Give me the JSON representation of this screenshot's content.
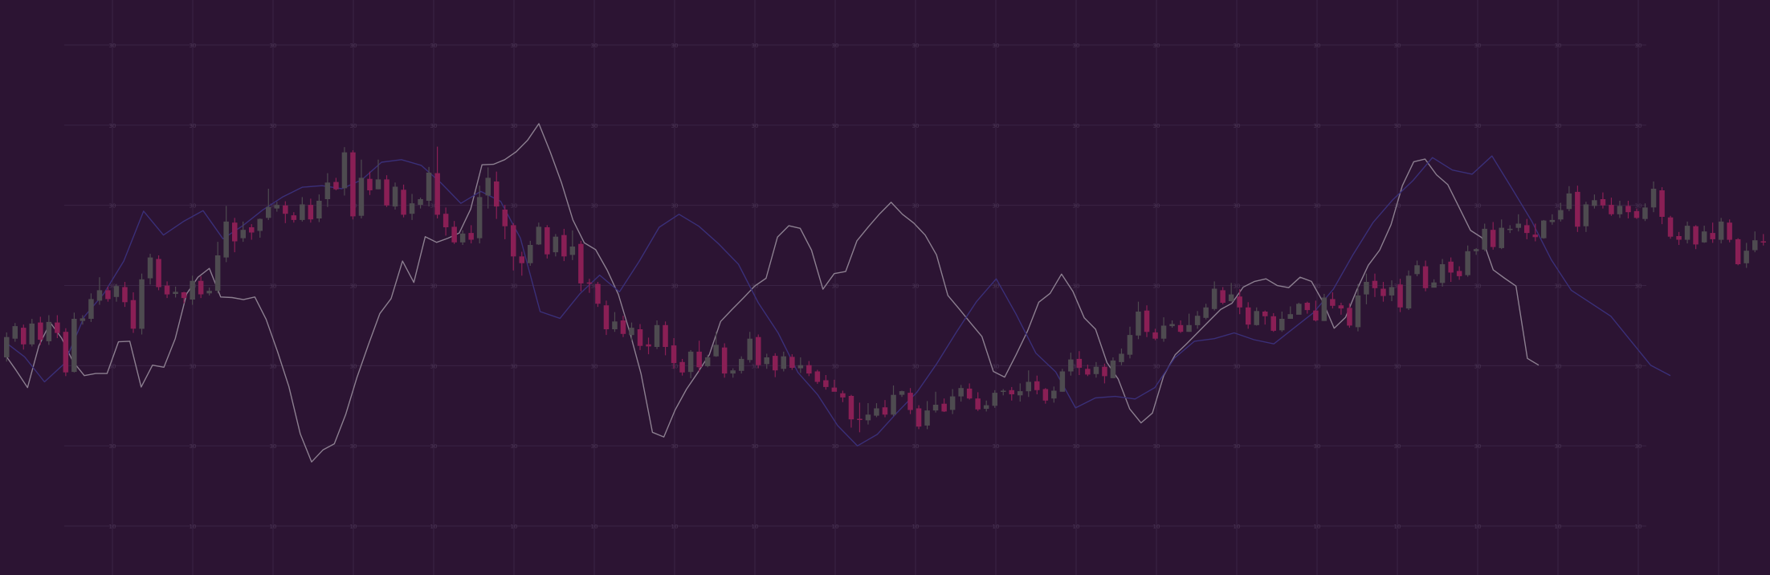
{
  "theme": {
    "background": "#2c1433",
    "grid_color": "#3a2344",
    "grid_label_color": "#4a3554",
    "up_color": "#4e4b50",
    "down_color": "#8a1f55",
    "overlay_gray": "#8c7f90",
    "overlay_blue": "#3a2f78"
  },
  "grid_labels": {
    "row_values": [
      "30",
      "30",
      "30",
      "30",
      "30",
      "30",
      "10"
    ],
    "columns": 20
  },
  "chart_data": {
    "type": "candlestick",
    "title": "",
    "xlabel": "",
    "ylabel": "",
    "grid": true,
    "legend": "none",
    "ylim": [
      0,
      100
    ],
    "candles": [
      [
        37.5,
        41.4,
        42.3,
        36.7
      ],
      [
        41.1,
        43.5,
        44.1,
        40.5
      ],
      [
        43.2,
        40.0,
        43.8,
        39.0
      ],
      [
        40.0,
        44.0,
        44.9,
        39.6
      ],
      [
        44.2,
        40.9,
        45.3,
        39.9
      ],
      [
        40.6,
        44.3,
        45.6,
        39.9
      ],
      [
        44.2,
        42.2,
        45.6,
        41.2
      ],
      [
        42.4,
        34.6,
        43.1,
        33.9
      ],
      [
        34.7,
        44.9,
        46.1,
        34.6
      ],
      [
        44.5,
        45.0,
        45.6,
        43.8
      ],
      [
        44.9,
        48.7,
        49.8,
        44.3
      ],
      [
        48.4,
        50.4,
        52.9,
        47.6
      ],
      [
        50.4,
        48.7,
        51.1,
        48.2
      ],
      [
        49.1,
        51.2,
        51.6,
        48.2
      ],
      [
        51.0,
        48.1,
        52.0,
        47.2
      ],
      [
        48.5,
        43.0,
        50.0,
        42.2
      ],
      [
        43.0,
        52.5,
        53.6,
        41.9
      ],
      [
        52.7,
        56.7,
        57.4,
        51.5
      ],
      [
        56.4,
        51.0,
        57.1,
        50.4
      ],
      [
        51.3,
        49.6,
        52.1,
        48.9
      ],
      [
        49.7,
        50.1,
        51.1,
        49.0
      ],
      [
        50.0,
        48.9,
        50.1,
        47.9
      ],
      [
        48.6,
        52.2,
        53.2,
        47.6
      ],
      [
        52.2,
        49.6,
        53.1,
        48.9
      ],
      [
        49.8,
        50.3,
        50.9,
        49.4
      ],
      [
        50.3,
        57.1,
        59.7,
        49.8
      ],
      [
        56.7,
        63.6,
        66.6,
        55.8
      ],
      [
        63.4,
        59.8,
        64.3,
        57.7
      ],
      [
        60.4,
        62.0,
        63.6,
        59.7
      ],
      [
        62.5,
        61.5,
        63.1,
        60.1
      ],
      [
        61.8,
        64.1,
        64.2,
        60.5
      ],
      [
        64.3,
        66.4,
        69.9,
        63.9
      ],
      [
        66.1,
        66.8,
        67.4,
        65.5
      ],
      [
        66.7,
        65.1,
        67.5,
        63.3
      ],
      [
        64.8,
        63.9,
        65.4,
        63.4
      ],
      [
        63.9,
        66.9,
        68.3,
        63.6
      ],
      [
        66.8,
        64.0,
        68.0,
        63.4
      ],
      [
        64.2,
        67.6,
        68.8,
        63.5
      ],
      [
        67.9,
        71.1,
        72.9,
        66.4
      ],
      [
        71.2,
        69.8,
        72.0,
        69.6
      ],
      [
        70.0,
        76.9,
        77.9,
        68.6
      ],
      [
        76.9,
        64.6,
        77.3,
        64.0
      ],
      [
        64.7,
        72.0,
        75.5,
        64.2
      ],
      [
        71.8,
        69.6,
        73.2,
        68.7
      ],
      [
        69.8,
        71.7,
        75.5,
        69.8
      ],
      [
        71.7,
        66.7,
        72.5,
        66.4
      ],
      [
        66.5,
        70.3,
        71.1,
        65.9
      ],
      [
        69.7,
        64.9,
        70.7,
        64.4
      ],
      [
        65.1,
        67.1,
        68.9,
        63.9
      ],
      [
        66.8,
        67.9,
        68.2,
        66.1
      ],
      [
        67.6,
        73.0,
        74.1,
        66.5
      ],
      [
        72.9,
        64.9,
        78.0,
        64.2
      ],
      [
        65.1,
        62.5,
        66.3,
        60.9
      ],
      [
        62.6,
        59.6,
        63.7,
        59.3
      ],
      [
        59.6,
        61.3,
        61.9,
        59.1
      ],
      [
        61.4,
        60.1,
        62.9,
        59.4
      ],
      [
        60.4,
        68.3,
        70.5,
        59.4
      ],
      [
        68.6,
        72.0,
        74.0,
        66.1
      ],
      [
        71.3,
        66.5,
        73.2,
        64.1
      ],
      [
        65.9,
        62.7,
        66.8,
        60.2
      ],
      [
        62.9,
        56.9,
        63.3,
        54.2
      ],
      [
        56.9,
        55.6,
        57.8,
        53.2
      ],
      [
        55.6,
        59.1,
        59.9,
        55.1
      ],
      [
        59.2,
        62.6,
        63.4,
        59.1
      ],
      [
        62.5,
        57.3,
        62.9,
        56.5
      ],
      [
        57.7,
        60.7,
        61.2,
        56.9
      ],
      [
        61.0,
        56.9,
        62.2,
        56.0
      ],
      [
        57.2,
        58.8,
        61.9,
        56.2
      ],
      [
        59.3,
        51.7,
        59.9,
        50.2
      ],
      [
        51.9,
        51.8,
        52.6,
        49.9
      ],
      [
        51.6,
        47.8,
        52.0,
        47.2
      ],
      [
        47.5,
        42.9,
        48.4,
        41.8
      ],
      [
        42.9,
        44.4,
        46.2,
        42.4
      ],
      [
        44.6,
        42.0,
        45.5,
        41.4
      ],
      [
        41.8,
        43.2,
        44.2,
        40.7
      ],
      [
        42.9,
        39.7,
        43.9,
        38.9
      ],
      [
        40.0,
        39.6,
        41.3,
        38.1
      ],
      [
        39.5,
        43.7,
        44.6,
        39.1
      ],
      [
        43.7,
        39.5,
        44.4,
        37.9
      ],
      [
        39.8,
        36.4,
        41.2,
        35.3
      ],
      [
        36.6,
        34.6,
        37.2,
        34.0
      ],
      [
        34.7,
        38.6,
        38.9,
        33.5
      ],
      [
        38.6,
        35.6,
        40.7,
        34.7
      ],
      [
        35.8,
        37.5,
        38.0,
        35.6
      ],
      [
        37.7,
        39.9,
        42.4,
        37.6
      ],
      [
        39.4,
        34.4,
        40.2,
        33.6
      ],
      [
        34.4,
        35.0,
        35.4,
        33.6
      ],
      [
        34.9,
        37.2,
        37.7,
        34.4
      ],
      [
        37.0,
        41.1,
        42.4,
        36.5
      ],
      [
        41.4,
        36.0,
        41.9,
        35.4
      ],
      [
        36.2,
        37.5,
        38.2,
        35.3
      ],
      [
        37.8,
        35.0,
        38.3,
        33.7
      ],
      [
        35.3,
        37.7,
        38.6,
        34.8
      ],
      [
        37.6,
        35.5,
        38.1,
        35.1
      ],
      [
        35.4,
        36.0,
        37.5,
        34.5
      ],
      [
        36.0,
        34.4,
        36.8,
        33.9
      ],
      [
        34.8,
        32.8,
        35.1,
        32.4
      ],
      [
        33.1,
        31.8,
        34.1,
        31.3
      ],
      [
        31.7,
        30.9,
        33.2,
        31.1
      ],
      [
        30.6,
        29.8,
        31.1,
        28.9
      ],
      [
        30.1,
        25.6,
        30.3,
        24.0
      ],
      [
        25.7,
        25.5,
        28.8,
        23.1
      ],
      [
        25.4,
        26.5,
        28.7,
        24.6
      ],
      [
        26.3,
        27.7,
        28.7,
        26.0
      ],
      [
        27.9,
        26.5,
        29.3,
        26.0
      ],
      [
        26.5,
        30.3,
        32.1,
        26.2
      ],
      [
        30.3,
        31.0,
        31.1,
        29.9
      ],
      [
        30.7,
        27.4,
        31.6,
        26.6
      ],
      [
        27.7,
        24.2,
        28.3,
        23.7
      ],
      [
        24.4,
        27.3,
        29.1,
        23.7
      ],
      [
        27.3,
        28.4,
        30.9,
        26.9
      ],
      [
        28.6,
        27.1,
        29.6,
        27.0
      ],
      [
        27.4,
        30.0,
        31.4,
        26.6
      ],
      [
        30.0,
        31.6,
        32.2,
        29.0
      ],
      [
        31.5,
        29.6,
        32.5,
        29.4
      ],
      [
        29.6,
        27.5,
        30.8,
        27.2
      ],
      [
        27.6,
        28.3,
        29.2,
        27.1
      ],
      [
        28.2,
        30.7,
        31.2,
        27.8
      ],
      [
        31.0,
        31.1,
        31.4,
        30.2
      ],
      [
        31.2,
        30.4,
        31.8,
        29.2
      ],
      [
        30.2,
        31.0,
        32.5,
        29.0
      ],
      [
        31.0,
        32.8,
        35.0,
        29.9
      ],
      [
        32.9,
        31.2,
        34.0,
        30.4
      ],
      [
        31.4,
        29.2,
        31.6,
        28.6
      ],
      [
        29.6,
        31.1,
        31.9,
        28.8
      ],
      [
        30.9,
        34.8,
        35.3,
        30.9
      ],
      [
        34.8,
        37.1,
        38.4,
        34.0
      ],
      [
        37.2,
        35.5,
        38.7,
        34.1
      ],
      [
        35.3,
        34.2,
        36.1,
        33.9
      ],
      [
        34.3,
        35.7,
        36.6,
        33.6
      ],
      [
        35.7,
        33.9,
        36.3,
        32.5
      ],
      [
        33.5,
        36.9,
        37.5,
        33.5
      ],
      [
        36.6,
        38.2,
        39.2,
        36.0
      ],
      [
        38.0,
        41.8,
        43.4,
        37.3
      ],
      [
        41.7,
        46.3,
        48.2,
        41.0
      ],
      [
        46.5,
        42.4,
        47.5,
        41.4
      ],
      [
        42.3,
        41.1,
        43.0,
        40.8
      ],
      [
        41.1,
        43.6,
        45.2,
        40.5
      ],
      [
        43.5,
        43.9,
        44.6,
        43.2
      ],
      [
        43.7,
        42.4,
        44.6,
        42.2
      ],
      [
        42.4,
        43.7,
        45.9,
        42.4
      ],
      [
        43.7,
        45.5,
        46.4,
        43.0
      ],
      [
        45.1,
        47.1,
        47.8,
        44.8
      ],
      [
        46.8,
        50.7,
        52.1,
        46.5
      ],
      [
        50.4,
        48.0,
        51.0,
        47.7
      ],
      [
        48.3,
        49.6,
        51.8,
        48.2
      ],
      [
        49.2,
        47.1,
        50.6,
        45.8
      ],
      [
        47.1,
        43.8,
        48.1,
        43.0
      ],
      [
        43.7,
        46.4,
        47.1,
        43.6
      ],
      [
        46.3,
        45.4,
        46.5,
        43.8
      ],
      [
        45.4,
        42.6,
        46.0,
        42.4
      ],
      [
        42.7,
        44.9,
        46.3,
        42.4
      ],
      [
        44.9,
        45.8,
        47.3,
        45.6
      ],
      [
        45.7,
        47.8,
        48.0,
        45.8
      ],
      [
        48.0,
        46.6,
        48.2,
        45.9
      ],
      [
        46.5,
        44.6,
        48.4,
        44.4
      ],
      [
        44.5,
        49.0,
        49.7,
        44.5
      ],
      [
        48.7,
        47.4,
        50.0,
        46.9
      ],
      [
        47.5,
        46.9,
        48.0,
        45.7
      ],
      [
        47.0,
        43.6,
        47.9,
        43.2
      ],
      [
        43.3,
        49.4,
        51.6,
        42.5
      ],
      [
        49.6,
        52.0,
        53.6,
        47.7
      ],
      [
        52.2,
        50.8,
        53.6,
        49.1
      ],
      [
        50.7,
        49.3,
        52.0,
        48.2
      ],
      [
        49.4,
        51.0,
        52.3,
        48.3
      ],
      [
        51.5,
        47.1,
        52.6,
        46.2
      ],
      [
        46.9,
        53.2,
        54.2,
        46.6
      ],
      [
        53.5,
        55.2,
        56.1,
        53.1
      ],
      [
        55.0,
        50.8,
        56.1,
        50.2
      ],
      [
        50.9,
        51.9,
        52.5,
        51.2
      ],
      [
        51.8,
        55.4,
        56.4,
        51.1
      ],
      [
        55.9,
        53.8,
        56.7,
        52.0
      ],
      [
        54.1,
        53.1,
        55.0,
        52.4
      ],
      [
        53.3,
        57.9,
        59.0,
        53.0
      ],
      [
        57.9,
        58.3,
        58.5,
        57.2
      ],
      [
        58.2,
        62.2,
        63.2,
        57.9
      ],
      [
        62.0,
        58.7,
        63.5,
        58.2
      ],
      [
        58.5,
        62.4,
        64.0,
        58.3
      ],
      [
        62.2,
        62.2,
        62.9,
        61.4
      ],
      [
        62.4,
        63.2,
        65.0,
        61.7
      ],
      [
        62.9,
        61.4,
        64.1,
        60.2
      ],
      [
        61.1,
        60.6,
        63.2,
        59.8
      ],
      [
        60.4,
        63.8,
        63.9,
        60.3
      ],
      [
        63.5,
        63.9,
        65.0,
        63.0
      ],
      [
        64.0,
        65.8,
        67.2,
        63.6
      ],
      [
        66.0,
        69.0,
        70.4,
        65.6
      ],
      [
        69.3,
        62.6,
        70.5,
        61.6
      ],
      [
        62.7,
        66.9,
        67.4,
        61.6
      ],
      [
        66.6,
        67.7,
        68.8,
        66.1
      ],
      [
        67.9,
        66.7,
        69.2,
        66.1
      ],
      [
        66.8,
        65.0,
        68.2,
        64.7
      ],
      [
        65.0,
        66.6,
        67.6,
        64.3
      ],
      [
        66.6,
        65.4,
        67.6,
        64.2
      ],
      [
        65.6,
        64.3,
        66.1,
        64.1
      ],
      [
        64.1,
        66.3,
        67.1,
        63.7
      ],
      [
        66.3,
        69.9,
        71.3,
        65.4
      ],
      [
        69.6,
        64.5,
        70.2,
        63.1
      ],
      [
        64.4,
        60.7,
        64.7,
        60.3
      ],
      [
        60.8,
        60.1,
        61.6,
        59.1
      ],
      [
        60.1,
        62.8,
        63.6,
        59.4
      ],
      [
        62.7,
        59.2,
        62.9,
        58.3
      ],
      [
        59.6,
        61.7,
        62.8,
        59.5
      ],
      [
        61.4,
        60.2,
        63.4,
        59.5
      ],
      [
        60.1,
        63.6,
        64.3,
        59.4
      ],
      [
        63.4,
        60.1,
        64.0,
        59.6
      ],
      [
        60.2,
        55.4,
        60.4,
        55.2
      ],
      [
        55.6,
        58.0,
        59.5,
        54.7
      ],
      [
        58.1,
        60.0,
        61.7,
        57.7
      ],
      [
        59.8,
        59.6,
        61.2,
        59.0
      ]
    ],
    "series": [
      {
        "y": [
          38.1,
          35.0,
          31.7,
          39.7,
          44.2,
          41.2,
          36.7,
          34.0,
          34.4,
          34.4,
          40.5,
          40.6,
          31.8,
          36.0,
          35.6,
          41.1,
          49.7,
          52.9,
          54.6,
          49.1,
          49.0,
          48.6,
          49.1,
          44.8,
          38.6,
          31.9,
          22.8,
          17.4,
          19.7,
          20.9,
          26.5,
          33.7,
          39.9,
          45.9,
          48.8,
          56.0,
          51.9,
          60.7,
          59.6,
          60.4,
          61.4,
          66.0,
          74.5,
          74.6,
          75.5,
          77.0,
          79.2,
          82.4,
          77.0,
          71.0,
          63.9,
          59.5,
          58.2,
          54.3,
          49.6,
          42.4,
          34.3,
          23.1,
          22.2,
          27.4,
          31.4,
          34.6,
          38.0,
          44.4,
          46.7,
          48.9,
          51.2,
          52.7,
          60.6,
          62.8,
          62.3,
          58.1,
          50.6,
          53.6,
          54.0,
          59.9,
          62.6,
          65.1,
          67.3,
          65.0,
          63.3,
          61.0,
          57.2,
          49.4,
          46.8,
          44.1,
          41.5,
          34.8,
          33.7,
          38.0,
          42.5,
          48.1,
          49.8,
          53.5,
          50.2,
          45.1,
          42.9,
          36.5,
          33.3,
          27.6,
          24.9,
          26.8,
          34.0,
          38.0,
          40.1,
          42.3,
          44.5,
          46.7,
          47.9,
          51.0,
          52.1,
          52.6,
          51.3,
          50.9,
          52.9,
          52.1,
          48.2,
          43.1,
          45.2,
          50.5,
          55.2,
          58.1,
          63.0,
          70.5,
          75.1,
          75.6,
          72.6,
          70.7,
          66.3,
          61.9,
          60.5,
          54.3,
          52.7,
          51.2,
          37.3,
          36.0
        ]
      },
      {
        "y": [
          40.5,
          37.6,
          32.8,
          36.3,
          45.3,
          49.8,
          56.0,
          65.6,
          61.0,
          63.6,
          65.7,
          60.3,
          62.8,
          65.8,
          68.3,
          70.2,
          70.5,
          69.9,
          71.6,
          75.0,
          75.5,
          74.4,
          71.0,
          67.1,
          69.4,
          67.5,
          60.4,
          46.3,
          45.0,
          49.7,
          53.3,
          50.1,
          56.0,
          62.5,
          65.0,
          62.7,
          59.3,
          55.4,
          48.0,
          42.2,
          34.6,
          30.3,
          24.4,
          20.5,
          22.7,
          26.9,
          30.8,
          36.3,
          42.4,
          48.2,
          52.6,
          45.8,
          38.3,
          34.7,
          27.8,
          29.7,
          30.0,
          29.5,
          31.7,
          37.4,
          40.6,
          41.1,
          42.2,
          40.9,
          40.1,
          43.1,
          46.1,
          50.6,
          57.3,
          63.4,
          67.8,
          71.4,
          75.9,
          73.5,
          72.7,
          76.2,
          70.0,
          63.7,
          56.2,
          50.4,
          47.9,
          45.4,
          40.7,
          36.0,
          34.0
        ]
      }
    ]
  }
}
